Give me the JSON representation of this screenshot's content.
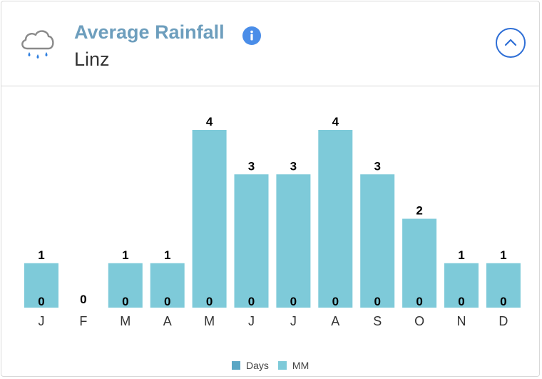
{
  "header": {
    "title": "Average Rainfall",
    "subtitle": "Linz",
    "icons": {
      "weather": "rain-cloud-icon",
      "info": "info-icon",
      "collapse": "chevron-up-icon"
    }
  },
  "colors": {
    "title": "#6d9ebd",
    "accent": "#2f6fd6",
    "days": "#5aa6c4",
    "mm": "#7ecad9"
  },
  "chart_data": {
    "type": "bar",
    "categories": [
      "J",
      "F",
      "M",
      "A",
      "M",
      "J",
      "J",
      "A",
      "S",
      "O",
      "N",
      "D"
    ],
    "series": [
      {
        "name": "Days",
        "values": [
          0,
          0,
          0,
          0,
          0,
          0,
          0,
          0,
          0,
          0,
          0,
          0
        ]
      },
      {
        "name": "MM",
        "values": [
          1,
          0,
          1,
          1,
          4,
          3,
          3,
          4,
          3,
          2,
          1,
          1
        ]
      }
    ],
    "ylim": [
      0,
      4
    ],
    "grid": false,
    "legend_position": "bottom"
  }
}
